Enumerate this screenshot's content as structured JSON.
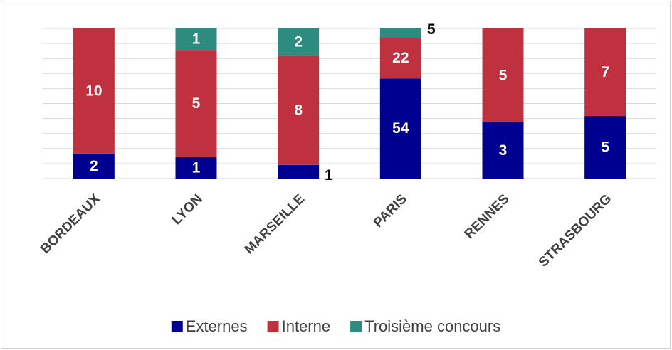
{
  "chart_data": {
    "type": "bar",
    "stacking": "percent",
    "categories": [
      "BORDEAUX",
      "LYON",
      "MARSEILLE",
      "PARIS",
      "RENNES",
      "STRASBOURG"
    ],
    "series": [
      {
        "name": "Externes",
        "color": "#000090",
        "values": [
          2,
          1,
          1,
          54,
          3,
          5
        ]
      },
      {
        "name": "Interne",
        "color": "#C0313F",
        "values": [
          10,
          5,
          8,
          22,
          5,
          7
        ]
      },
      {
        "name": "Troisième concours",
        "color": "#2E8B80",
        "values": [
          null,
          1,
          2,
          5,
          null,
          null
        ]
      }
    ],
    "ylim": [
      0,
      100
    ],
    "yticks": [
      0,
      10,
      20,
      30,
      40,
      50,
      60,
      70,
      80,
      90,
      100
    ],
    "grid": true,
    "legend": "bottom"
  }
}
